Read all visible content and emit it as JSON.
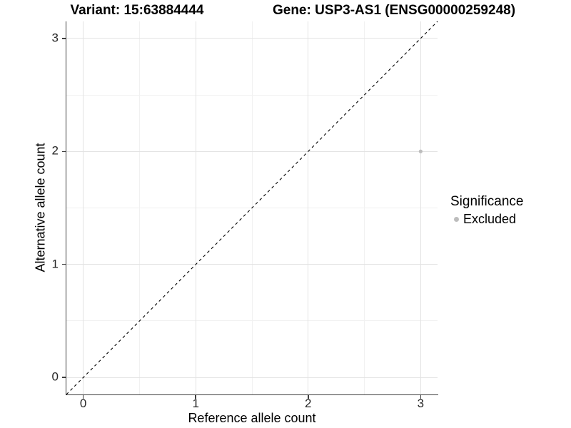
{
  "chart_data": {
    "type": "scatter",
    "title_left": "Variant: 15:63884444",
    "title_right": "Gene: USP3-AS1 (ENSG00000259248)",
    "xlabel": "Reference allele count",
    "ylabel": "Alternative allele count",
    "xlim": [
      -0.15,
      3.15
    ],
    "ylim": [
      -0.15,
      3.15
    ],
    "x_ticks": [
      0,
      1,
      2,
      3
    ],
    "y_ticks": [
      0,
      1,
      2,
      3
    ],
    "x_minor_ticks": [
      0.5,
      1.5,
      2.5
    ],
    "y_minor_ticks": [
      0.5,
      1.5,
      2.5
    ],
    "grid": "major and minor gridlines on white panel",
    "legend_title": "Significance",
    "legend_position": "right-middle",
    "identity_line": {
      "style": "dashed",
      "color": "#000000",
      "from": [
        -0.15,
        -0.15
      ],
      "to": [
        3.15,
        3.15
      ]
    },
    "series": [
      {
        "name": "Excluded",
        "color": "#bdbdbd",
        "points": [
          [
            3,
            2
          ]
        ],
        "point_radius": 2.6
      }
    ]
  },
  "colors": {
    "background": "#ffffff",
    "grid_major": "#e3e3e3",
    "grid_minor": "#f1f1f1",
    "axis_line": "#3d3d3d",
    "tick_text": "#262626",
    "title_text": "#000000"
  }
}
